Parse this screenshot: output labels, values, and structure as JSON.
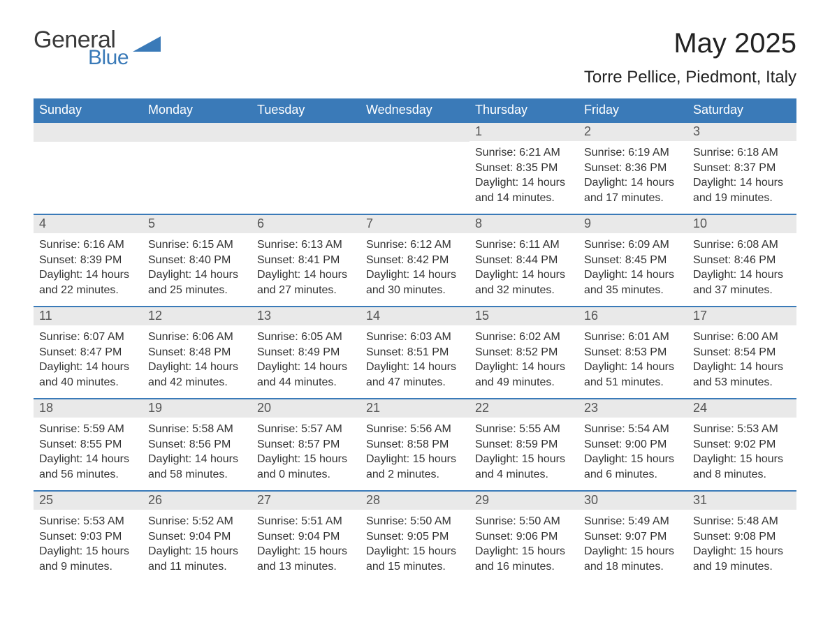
{
  "logo": {
    "general": "General",
    "blue": "Blue"
  },
  "title": "May 2025",
  "location": "Torre Pellice, Piedmont, Italy",
  "colors": {
    "header_bg": "#3a7ab8",
    "header_text": "#ffffff",
    "daynum_bg": "#e9e9e9",
    "daynum_text": "#555555",
    "body_text": "#333333",
    "row_border": "#3a7ab8",
    "logo_gray": "#3a3a3a",
    "logo_blue": "#3a7ab8",
    "page_bg": "#ffffff"
  },
  "dayNames": [
    "Sunday",
    "Monday",
    "Tuesday",
    "Wednesday",
    "Thursday",
    "Friday",
    "Saturday"
  ],
  "weeks": [
    [
      null,
      null,
      null,
      null,
      {
        "n": "1",
        "sunrise": "6:21 AM",
        "sunset": "8:35 PM",
        "daylight": "14 hours and 14 minutes."
      },
      {
        "n": "2",
        "sunrise": "6:19 AM",
        "sunset": "8:36 PM",
        "daylight": "14 hours and 17 minutes."
      },
      {
        "n": "3",
        "sunrise": "6:18 AM",
        "sunset": "8:37 PM",
        "daylight": "14 hours and 19 minutes."
      }
    ],
    [
      {
        "n": "4",
        "sunrise": "6:16 AM",
        "sunset": "8:39 PM",
        "daylight": "14 hours and 22 minutes."
      },
      {
        "n": "5",
        "sunrise": "6:15 AM",
        "sunset": "8:40 PM",
        "daylight": "14 hours and 25 minutes."
      },
      {
        "n": "6",
        "sunrise": "6:13 AM",
        "sunset": "8:41 PM",
        "daylight": "14 hours and 27 minutes."
      },
      {
        "n": "7",
        "sunrise": "6:12 AM",
        "sunset": "8:42 PM",
        "daylight": "14 hours and 30 minutes."
      },
      {
        "n": "8",
        "sunrise": "6:11 AM",
        "sunset": "8:44 PM",
        "daylight": "14 hours and 32 minutes."
      },
      {
        "n": "9",
        "sunrise": "6:09 AM",
        "sunset": "8:45 PM",
        "daylight": "14 hours and 35 minutes."
      },
      {
        "n": "10",
        "sunrise": "6:08 AM",
        "sunset": "8:46 PM",
        "daylight": "14 hours and 37 minutes."
      }
    ],
    [
      {
        "n": "11",
        "sunrise": "6:07 AM",
        "sunset": "8:47 PM",
        "daylight": "14 hours and 40 minutes."
      },
      {
        "n": "12",
        "sunrise": "6:06 AM",
        "sunset": "8:48 PM",
        "daylight": "14 hours and 42 minutes."
      },
      {
        "n": "13",
        "sunrise": "6:05 AM",
        "sunset": "8:49 PM",
        "daylight": "14 hours and 44 minutes."
      },
      {
        "n": "14",
        "sunrise": "6:03 AM",
        "sunset": "8:51 PM",
        "daylight": "14 hours and 47 minutes."
      },
      {
        "n": "15",
        "sunrise": "6:02 AM",
        "sunset": "8:52 PM",
        "daylight": "14 hours and 49 minutes."
      },
      {
        "n": "16",
        "sunrise": "6:01 AM",
        "sunset": "8:53 PM",
        "daylight": "14 hours and 51 minutes."
      },
      {
        "n": "17",
        "sunrise": "6:00 AM",
        "sunset": "8:54 PM",
        "daylight": "14 hours and 53 minutes."
      }
    ],
    [
      {
        "n": "18",
        "sunrise": "5:59 AM",
        "sunset": "8:55 PM",
        "daylight": "14 hours and 56 minutes."
      },
      {
        "n": "19",
        "sunrise": "5:58 AM",
        "sunset": "8:56 PM",
        "daylight": "14 hours and 58 minutes."
      },
      {
        "n": "20",
        "sunrise": "5:57 AM",
        "sunset": "8:57 PM",
        "daylight": "15 hours and 0 minutes."
      },
      {
        "n": "21",
        "sunrise": "5:56 AM",
        "sunset": "8:58 PM",
        "daylight": "15 hours and 2 minutes."
      },
      {
        "n": "22",
        "sunrise": "5:55 AM",
        "sunset": "8:59 PM",
        "daylight": "15 hours and 4 minutes."
      },
      {
        "n": "23",
        "sunrise": "5:54 AM",
        "sunset": "9:00 PM",
        "daylight": "15 hours and 6 minutes."
      },
      {
        "n": "24",
        "sunrise": "5:53 AM",
        "sunset": "9:02 PM",
        "daylight": "15 hours and 8 minutes."
      }
    ],
    [
      {
        "n": "25",
        "sunrise": "5:53 AM",
        "sunset": "9:03 PM",
        "daylight": "15 hours and 9 minutes."
      },
      {
        "n": "26",
        "sunrise": "5:52 AM",
        "sunset": "9:04 PM",
        "daylight": "15 hours and 11 minutes."
      },
      {
        "n": "27",
        "sunrise": "5:51 AM",
        "sunset": "9:04 PM",
        "daylight": "15 hours and 13 minutes."
      },
      {
        "n": "28",
        "sunrise": "5:50 AM",
        "sunset": "9:05 PM",
        "daylight": "15 hours and 15 minutes."
      },
      {
        "n": "29",
        "sunrise": "5:50 AM",
        "sunset": "9:06 PM",
        "daylight": "15 hours and 16 minutes."
      },
      {
        "n": "30",
        "sunrise": "5:49 AM",
        "sunset": "9:07 PM",
        "daylight": "15 hours and 18 minutes."
      },
      {
        "n": "31",
        "sunrise": "5:48 AM",
        "sunset": "9:08 PM",
        "daylight": "15 hours and 19 minutes."
      }
    ]
  ],
  "labels": {
    "sunrise": "Sunrise:",
    "sunset": "Sunset:",
    "daylight": "Daylight:"
  }
}
